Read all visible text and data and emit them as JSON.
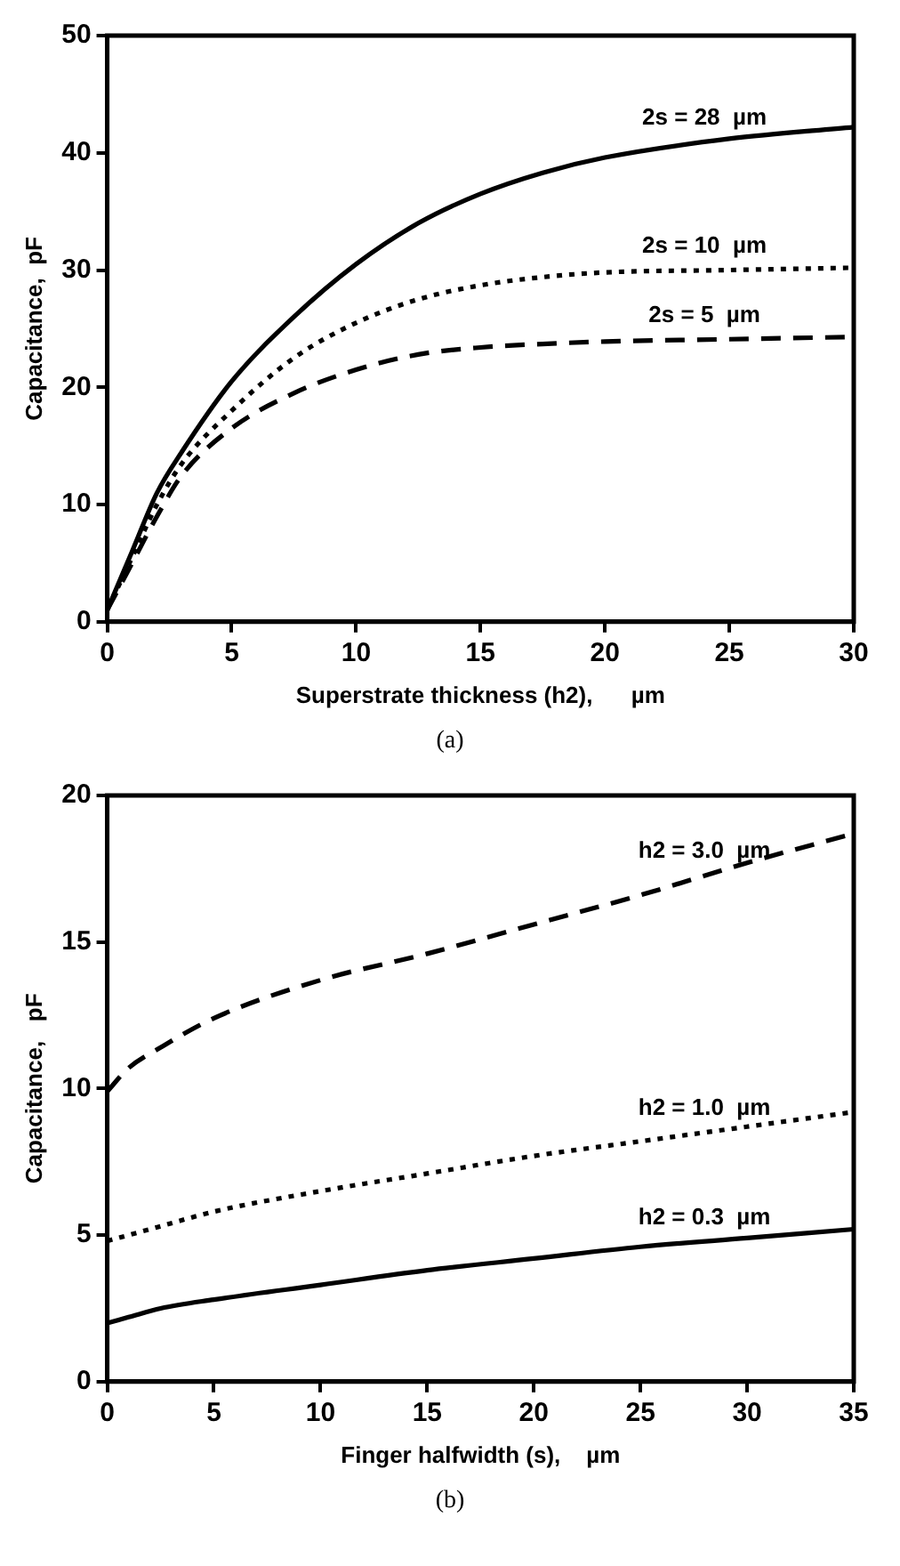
{
  "chart_data": [
    {
      "type": "line",
      "xlabel": "Superstrate thickness (h2),      µm",
      "ylabel": "Capacitance,  pF",
      "annotations": [
        "(a)"
      ],
      "xlim": [
        0,
        30
      ],
      "xticks": [
        0,
        5,
        10,
        15,
        20,
        25,
        30
      ],
      "ylim": [
        0,
        50
      ],
      "yticks": [
        0,
        10,
        20,
        30,
        40,
        50
      ],
      "x": [
        0,
        1,
        2,
        3,
        5,
        7.5,
        10,
        12.5,
        15,
        17.5,
        20,
        25,
        30
      ],
      "grid": false,
      "legend": false,
      "marker": "none",
      "series": [
        {
          "name": "2s = 28  µm",
          "color": "#000000",
          "line_style": "solid",
          "values": [
            1,
            6,
            11,
            14.5,
            20.5,
            26,
            30.5,
            34,
            36.5,
            38.3,
            39.6,
            41.2,
            42.2
          ]
        },
        {
          "name": "2s = 10  µm",
          "color": "#000000",
          "line_style": "dotted",
          "values": [
            1,
            5.5,
            10,
            13.5,
            18,
            22.5,
            25.5,
            27.5,
            28.7,
            29.4,
            29.8,
            30,
            30.2
          ]
        },
        {
          "name": "2s = 5  µm",
          "color": "#000000",
          "line_style": "dashed",
          "values": [
            1,
            5,
            9,
            12.5,
            16.5,
            19.5,
            21.5,
            22.8,
            23.4,
            23.7,
            23.9,
            24.1,
            24.3
          ]
        }
      ]
    },
    {
      "type": "line",
      "xlabel": "Finger halfwidth (s),    µm",
      "ylabel": "Capacitance,   pF",
      "annotations": [
        "(b)"
      ],
      "xlim": [
        0,
        35
      ],
      "xticks": [
        0,
        5,
        10,
        15,
        20,
        25,
        30,
        35
      ],
      "ylim": [
        0,
        20
      ],
      "yticks": [
        0,
        5,
        10,
        15,
        20
      ],
      "x": [
        0,
        1,
        2.5,
        5,
        10,
        15,
        20,
        25,
        30,
        35
      ],
      "grid": false,
      "legend": false,
      "marker": "none",
      "series": [
        {
          "name": "h2 = 3.0  µm",
          "color": "#000000",
          "line_style": "dashed",
          "values": [
            9.9,
            10.7,
            11.4,
            12.4,
            13.7,
            14.6,
            15.6,
            16.6,
            17.7,
            18.7
          ]
        },
        {
          "name": "h2 = 1.0  µm",
          "color": "#000000",
          "line_style": "dotted",
          "values": [
            4.8,
            5.0,
            5.3,
            5.8,
            6.5,
            7.1,
            7.7,
            8.2,
            8.7,
            9.2
          ]
        },
        {
          "name": "h2 = 0.3  µm",
          "color": "#000000",
          "line_style": "solid",
          "values": [
            2.0,
            2.2,
            2.5,
            2.8,
            3.3,
            3.8,
            4.2,
            4.6,
            4.9,
            5.2
          ]
        }
      ]
    }
  ]
}
